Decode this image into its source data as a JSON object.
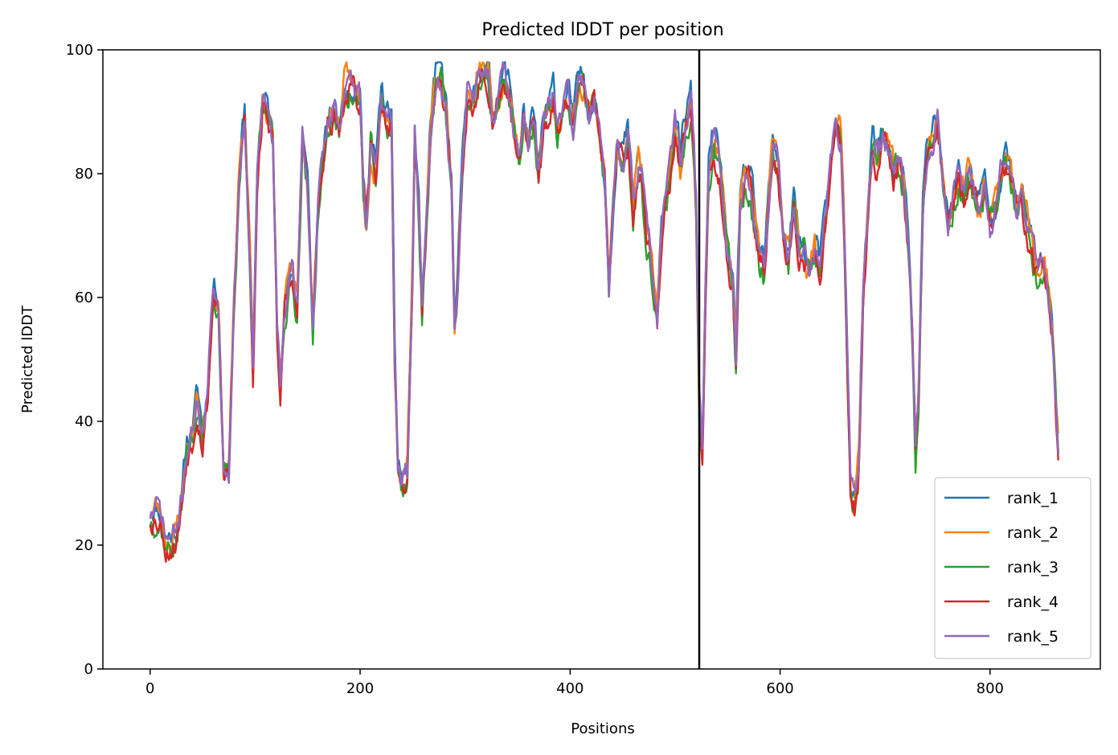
{
  "chart_data": {
    "type": "line",
    "title": "Predicted lDDT per position",
    "xlabel": "Positions",
    "ylabel": "Predicted lDDT",
    "xlim": [
      -45,
      905
    ],
    "ylim": [
      0,
      100
    ],
    "xticks": [
      0,
      200,
      400,
      600,
      800
    ],
    "yticks": [
      0,
      20,
      40,
      60,
      80,
      100
    ],
    "grid": false,
    "legend_position": "lower-right",
    "divider_x": 523,
    "divider_color": "#000000",
    "x_max": 865,
    "base_profile": [
      [
        0,
        25
      ],
      [
        5,
        26
      ],
      [
        10,
        25
      ],
      [
        15,
        21
      ],
      [
        20,
        21
      ],
      [
        25,
        22
      ],
      [
        30,
        27
      ],
      [
        35,
        36
      ],
      [
        40,
        38
      ],
      [
        45,
        44
      ],
      [
        50,
        38
      ],
      [
        55,
        45
      ],
      [
        60,
        62
      ],
      [
        65,
        60
      ],
      [
        70,
        32
      ],
      [
        75,
        32
      ],
      [
        80,
        60
      ],
      [
        85,
        80
      ],
      [
        90,
        90
      ],
      [
        95,
        68
      ],
      [
        98,
        48
      ],
      [
        102,
        80
      ],
      [
        107,
        92
      ],
      [
        112,
        90
      ],
      [
        117,
        85
      ],
      [
        121,
        55
      ],
      [
        124,
        46
      ],
      [
        128,
        58
      ],
      [
        132,
        62
      ],
      [
        136,
        63
      ],
      [
        140,
        58
      ],
      [
        145,
        87
      ],
      [
        150,
        78
      ],
      [
        155,
        55
      ],
      [
        160,
        75
      ],
      [
        165,
        82
      ],
      [
        170,
        88
      ],
      [
        175,
        91
      ],
      [
        180,
        87
      ],
      [
        185,
        94
      ],
      [
        190,
        95
      ],
      [
        195,
        93
      ],
      [
        200,
        92
      ],
      [
        203,
        78
      ],
      [
        206,
        72
      ],
      [
        210,
        85
      ],
      [
        215,
        80
      ],
      [
        220,
        93
      ],
      [
        225,
        89
      ],
      [
        230,
        88
      ],
      [
        233,
        50
      ],
      [
        236,
        33
      ],
      [
        240,
        30
      ],
      [
        245,
        32
      ],
      [
        250,
        65
      ],
      [
        252,
        86
      ],
      [
        256,
        74
      ],
      [
        259,
        58
      ],
      [
        263,
        72
      ],
      [
        267,
        88
      ],
      [
        272,
        95
      ],
      [
        277,
        96
      ],
      [
        282,
        90
      ],
      [
        287,
        78
      ],
      [
        290,
        55
      ],
      [
        293,
        62
      ],
      [
        297,
        80
      ],
      [
        302,
        93
      ],
      [
        307,
        90
      ],
      [
        312,
        95
      ],
      [
        317,
        97
      ],
      [
        322,
        96
      ],
      [
        327,
        89
      ],
      [
        332,
        93
      ],
      [
        337,
        96
      ],
      [
        342,
        94
      ],
      [
        347,
        88
      ],
      [
        352,
        82
      ],
      [
        356,
        90
      ],
      [
        360,
        84
      ],
      [
        365,
        88
      ],
      [
        370,
        80
      ],
      [
        375,
        88
      ],
      [
        380,
        90
      ],
      [
        384,
        93
      ],
      [
        388,
        86
      ],
      [
        393,
        90
      ],
      [
        398,
        93
      ],
      [
        403,
        88
      ],
      [
        408,
        94
      ],
      [
        413,
        95
      ],
      [
        418,
        90
      ],
      [
        423,
        93
      ],
      [
        428,
        86
      ],
      [
        433,
        79
      ],
      [
        437,
        62
      ],
      [
        441,
        75
      ],
      [
        445,
        86
      ],
      [
        450,
        83
      ],
      [
        455,
        86
      ],
      [
        460,
        75
      ],
      [
        465,
        82
      ],
      [
        468,
        80
      ],
      [
        472,
        72
      ],
      [
        476,
        68
      ],
      [
        480,
        60
      ],
      [
        483,
        55
      ],
      [
        487,
        70
      ],
      [
        490,
        76
      ],
      [
        495,
        80
      ],
      [
        500,
        88
      ],
      [
        505,
        82
      ],
      [
        510,
        89
      ],
      [
        515,
        92
      ],
      [
        518,
        83
      ],
      [
        520,
        75
      ],
      [
        523,
        45
      ],
      [
        526,
        35
      ],
      [
        529,
        62
      ],
      [
        532,
        80
      ],
      [
        537,
        86
      ],
      [
        542,
        82
      ],
      [
        546,
        75
      ],
      [
        550,
        68
      ],
      [
        555,
        62
      ],
      [
        558,
        50
      ],
      [
        562,
        76
      ],
      [
        567,
        80
      ],
      [
        572,
        78
      ],
      [
        576,
        72
      ],
      [
        580,
        66
      ],
      [
        585,
        65
      ],
      [
        590,
        78
      ],
      [
        593,
        85
      ],
      [
        598,
        82
      ],
      [
        603,
        70
      ],
      [
        608,
        66
      ],
      [
        613,
        76
      ],
      [
        618,
        68
      ],
      [
        623,
        67
      ],
      [
        628,
        64
      ],
      [
        633,
        68
      ],
      [
        638,
        65
      ],
      [
        643,
        72
      ],
      [
        648,
        80
      ],
      [
        653,
        87
      ],
      [
        658,
        86
      ],
      [
        661,
        72
      ],
      [
        664,
        50
      ],
      [
        667,
        30
      ],
      [
        671,
        27
      ],
      [
        675,
        33
      ],
      [
        679,
        60
      ],
      [
        683,
        72
      ],
      [
        688,
        85
      ],
      [
        693,
        82
      ],
      [
        698,
        86
      ],
      [
        703,
        84
      ],
      [
        708,
        80
      ],
      [
        713,
        82
      ],
      [
        718,
        78
      ],
      [
        722,
        70
      ],
      [
        726,
        55
      ],
      [
        729,
        36
      ],
      [
        732,
        45
      ],
      [
        736,
        75
      ],
      [
        740,
        84
      ],
      [
        745,
        86
      ],
      [
        750,
        89
      ],
      [
        755,
        80
      ],
      [
        760,
        72
      ],
      [
        765,
        76
      ],
      [
        770,
        80
      ],
      [
        775,
        76
      ],
      [
        780,
        80
      ],
      [
        785,
        77
      ],
      [
        790,
        75
      ],
      [
        795,
        78
      ],
      [
        800,
        72
      ],
      [
        805,
        75
      ],
      [
        810,
        80
      ],
      [
        815,
        83
      ],
      [
        820,
        79
      ],
      [
        825,
        74
      ],
      [
        830,
        76
      ],
      [
        835,
        72
      ],
      [
        840,
        68
      ],
      [
        845,
        64
      ],
      [
        850,
        66
      ],
      [
        855,
        62
      ],
      [
        860,
        52
      ],
      [
        865,
        35
      ]
    ],
    "series": [
      {
        "name": "rank_1",
        "color": "#1f77b4",
        "offset": 0.8,
        "seed": 11
      },
      {
        "name": "rank_2",
        "color": "#ff7f0e",
        "offset": 0.3,
        "seed": 23
      },
      {
        "name": "rank_3",
        "color": "#2ca02c",
        "offset": -1.3,
        "seed": 37
      },
      {
        "name": "rank_4",
        "color": "#d62728",
        "offset": -1.0,
        "seed": 53
      },
      {
        "name": "rank_5",
        "color": "#9467bd",
        "offset": 0.0,
        "seed": 71
      }
    ]
  }
}
